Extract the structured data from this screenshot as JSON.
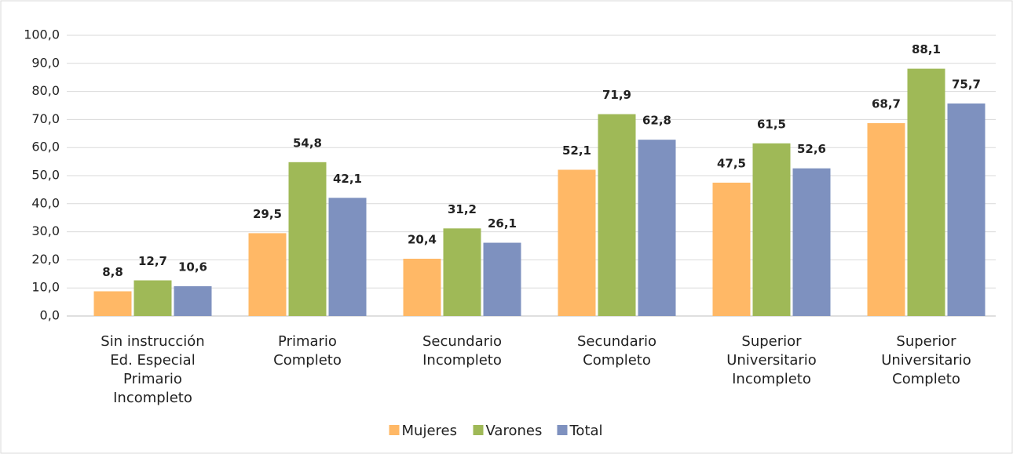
{
  "chart_data": {
    "type": "bar",
    "categories": [
      [
        "Sin instrucción",
        "Ed. Especial",
        "Primario",
        "Incompleto"
      ],
      [
        "Primario",
        "Completo"
      ],
      [
        "Secundario",
        "Incompleto"
      ],
      [
        "Secundario",
        "Completo"
      ],
      [
        "Superior",
        "Universitario",
        "Incompleto"
      ],
      [
        "Superior",
        "Universitario",
        "Completo"
      ]
    ],
    "series": [
      {
        "name": "Mujeres",
        "color": "#ffb866",
        "values": [
          8.8,
          29.5,
          20.4,
          52.1,
          47.5,
          68.7
        ],
        "value_labels": [
          "8,8",
          "29,5",
          "20,4",
          "52,1",
          "47,5",
          "68,7"
        ]
      },
      {
        "name": "Varones",
        "color": "#9fb957",
        "values": [
          12.7,
          54.8,
          31.2,
          71.9,
          61.5,
          88.1
        ],
        "value_labels": [
          "12,7",
          "54,8",
          "31,2",
          "71,9",
          "61,5",
          "88,1"
        ]
      },
      {
        "name": "Total",
        "color": "#7e91bf",
        "values": [
          10.6,
          42.1,
          26.1,
          62.8,
          52.6,
          75.7
        ],
        "value_labels": [
          "10,6",
          "42,1",
          "26,1",
          "62,8",
          "52,6",
          "75,7"
        ]
      }
    ],
    "ylim": [
      0,
      100
    ],
    "yticks": [
      {
        "value": 0,
        "label": "0,0"
      },
      {
        "value": 10,
        "label": "10,0"
      },
      {
        "value": 20,
        "label": "20,0"
      },
      {
        "value": 30,
        "label": "30,0"
      },
      {
        "value": 40,
        "label": "40,0"
      },
      {
        "value": 50,
        "label": "50,0"
      },
      {
        "value": 60,
        "label": "60,0"
      },
      {
        "value": 70,
        "label": "70,0"
      },
      {
        "value": 80,
        "label": "80,0"
      },
      {
        "value": 90,
        "label": "90,0"
      },
      {
        "value": 100,
        "label": "100,0"
      }
    ],
    "grid": true,
    "legend": "bottom"
  }
}
